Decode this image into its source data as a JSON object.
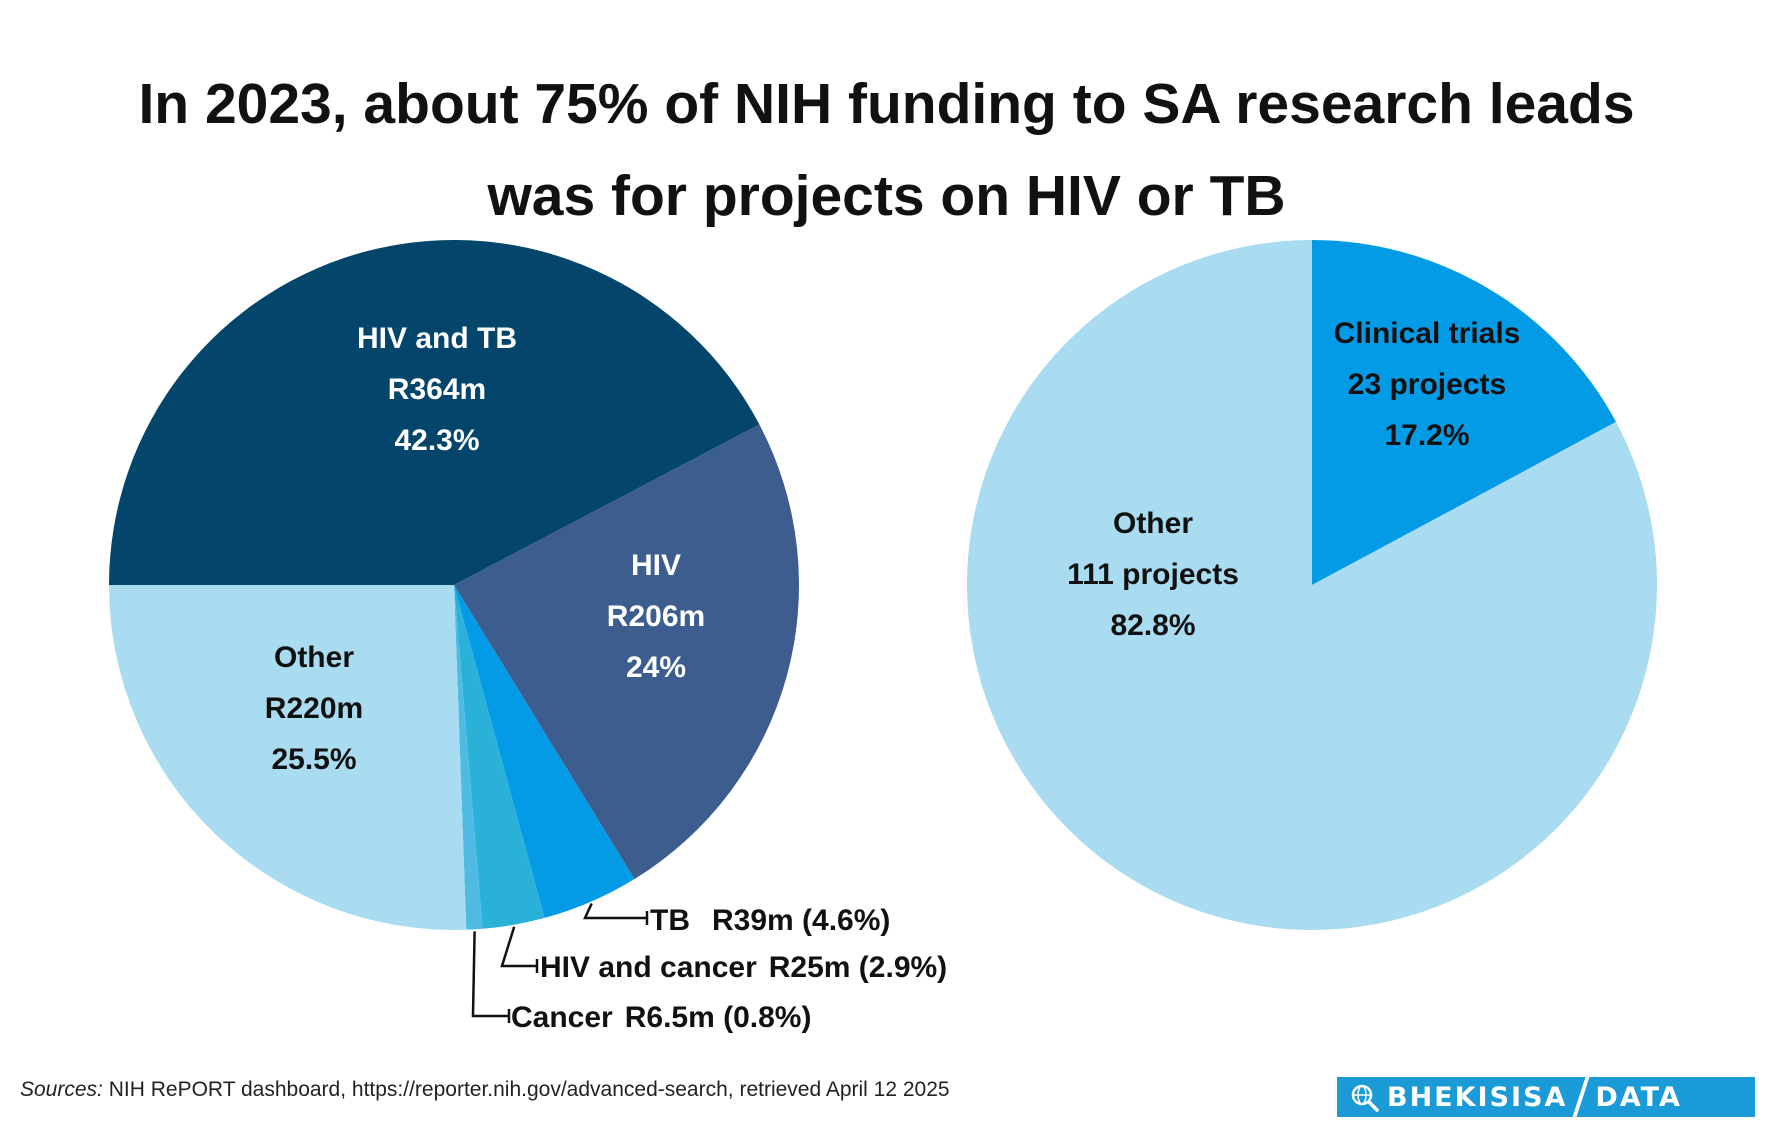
{
  "title": {
    "line1": "In 2023, about 75% of NIH funding to SA research leads",
    "line2": "was for projects on HIV or TB"
  },
  "chart_data": [
    {
      "type": "pie",
      "title": "",
      "slices": [
        {
          "name": "HIV and TB",
          "value_label": "R364m",
          "value": 364,
          "percent": 42.3,
          "pct_label": "42.3%",
          "color": "#03456b",
          "label_color": "#ffffff",
          "labeled": "inside"
        },
        {
          "name": "HIV",
          "value_label": "R206m",
          "value": 206,
          "percent": 24,
          "pct_label": "24%",
          "color": "#3d5d8f",
          "label_color": "#ffffff",
          "labeled": "inside"
        },
        {
          "name": "TB",
          "value_label": "R39m",
          "value": 39,
          "percent": 4.6,
          "pct_label": "(4.6%)",
          "color": "#039be5",
          "labeled": "callout"
        },
        {
          "name": "HIV and cancer",
          "value_label": "R25m",
          "value": 25,
          "percent": 2.9,
          "pct_label": "(2.9%)",
          "color": "#29b1d8",
          "labeled": "callout"
        },
        {
          "name": "Cancer",
          "value_label": "R6.5m",
          "value": 6.5,
          "percent": 0.8,
          "pct_label": "(0.8%)",
          "color": "#4fbbe3",
          "labeled": "callout"
        },
        {
          "name": "Other",
          "value_label": "R220m",
          "value": 220,
          "percent": 25.5,
          "pct_label": "25.5%",
          "color": "#a9dcf0",
          "label_color": "#111111",
          "labeled": "inside"
        }
      ]
    },
    {
      "type": "pie",
      "title": "",
      "slices": [
        {
          "name": "Clinical trials",
          "value_label": "23 projects",
          "value": 23,
          "percent": 17.2,
          "pct_label": "17.2%",
          "color": "#039be5",
          "label_color": "#111111",
          "labeled": "inside"
        },
        {
          "name": "Other",
          "value_label": "111 projects",
          "value": 111,
          "percent": 82.8,
          "pct_label": "82.8%",
          "color": "#a9dcf0",
          "label_color": "#111111",
          "labeled": "inside"
        }
      ]
    }
  ],
  "source": {
    "prefix": "Sources:",
    "text": "NIH RePORT dashboard, https://reporter.nih.gov/advanced-search, retrieved April 12 2025"
  },
  "brand": {
    "name": "BHEKISISA",
    "suffix": "DATA",
    "icon": "magnifier-globe-icon",
    "color": "#1a9ad6"
  }
}
